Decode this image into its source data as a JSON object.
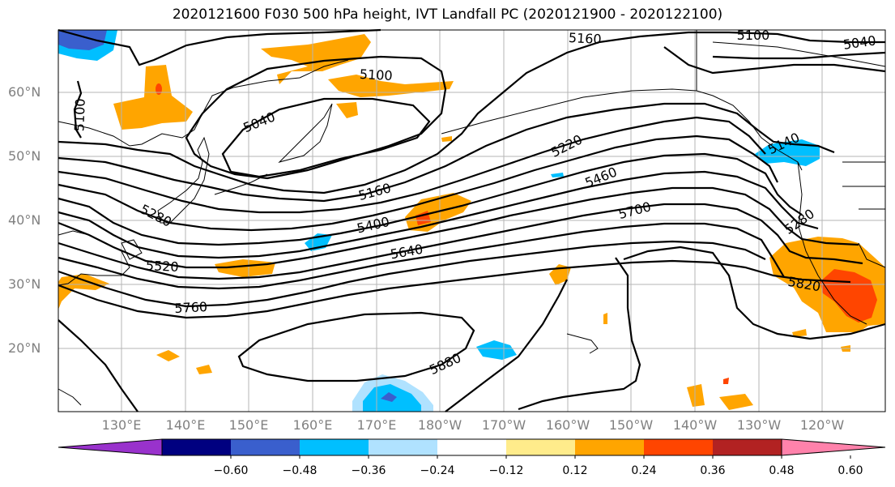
{
  "title": "2020121600 F030 500 hPa height, IVT Landfall PC (2020121900 - 2020122100)",
  "lat_labels": [
    "60°N",
    "50°N",
    "40°N",
    "30°N",
    "20°N"
  ],
  "lon_labels": [
    "130°E",
    "140°E",
    "150°E",
    "160°E",
    "170°E",
    "180°W",
    "170°W",
    "160°W",
    "150°W",
    "140°W",
    "130°W",
    "120°W"
  ],
  "contour_labels": [
    "5100",
    "5160",
    "5100",
    "5040",
    "5040",
    "5100",
    "5220",
    "5460",
    "5160",
    "5400",
    "5280",
    "5520",
    "5640",
    "5700",
    "5280",
    "5760",
    "5820",
    "5880",
    "5140"
  ],
  "colorbar": {
    "ticks": [
      "−0.60",
      "−0.48",
      "−0.36",
      "−0.24",
      "−0.12",
      "0.12",
      "0.24",
      "0.36",
      "0.48",
      "0.60"
    ],
    "colors": [
      "#9932cc",
      "#000080",
      "#3a5fcd",
      "#00bfff",
      "#b0e2ff",
      "#ffffff",
      "#ffec8b",
      "#ffa500",
      "#ff4500",
      "#b22222",
      "#ff82ab"
    ]
  },
  "fill_colors": {
    "orange": "#ffa500",
    "red": "#ff4500",
    "yellow": "#ffec8b",
    "cyan": "#00bfff",
    "lightblue": "#b0e2ff",
    "royal": "#3a5fcd"
  }
}
